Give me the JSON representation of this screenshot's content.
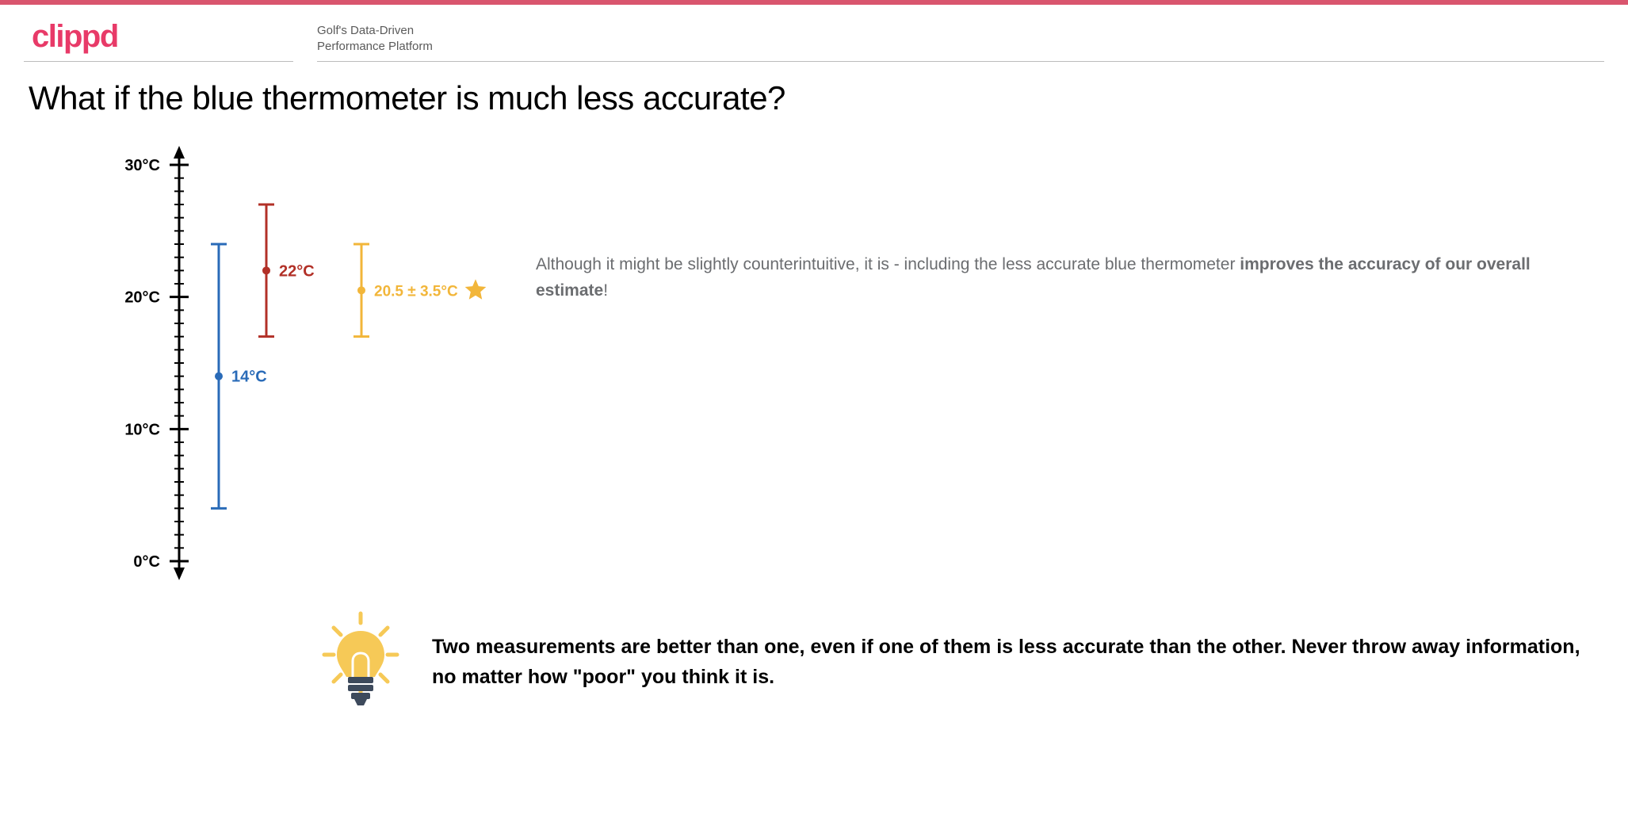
{
  "brand": {
    "logo_text": "clippd",
    "logo_color": "#e83a68",
    "tagline_line1": "Golf's Data-Driven",
    "tagline_line2": "Performance Platform",
    "topbar_color": "#d9556e"
  },
  "title": "What if the blue thermometer is much less accurate?",
  "chart": {
    "type": "errorbar-axis",
    "axis": {
      "min": 0,
      "max": 30,
      "major_step": 10,
      "minor_step": 1,
      "unit_suffix": "°C",
      "color": "#000000",
      "label_fontsize": 20,
      "label_fontweight": 700
    },
    "series": [
      {
        "id": "blue",
        "value": 14,
        "err_low": 4,
        "err_high": 24,
        "color": "#2a6bb8",
        "x_offset": 50,
        "label": "14°C",
        "dot_r": 5
      },
      {
        "id": "red",
        "value": 22,
        "err_low": 17,
        "err_high": 27,
        "color": "#b23027",
        "x_offset": 110,
        "label": "22°C",
        "dot_r": 5
      },
      {
        "id": "combined",
        "value": 20.5,
        "err_low": 17,
        "err_high": 24,
        "color": "#f2b63a",
        "x_offset": 230,
        "label": "20.5 ± 3.5°C",
        "dot_r": 5,
        "has_star": true
      }
    ],
    "cap_halfwidth": 10,
    "line_width": 3,
    "star_color": "#f2b63a",
    "background": "#ffffff"
  },
  "side_text": {
    "pre": "Although it might be slightly counterintuitive, it is - including the less accurate blue thermometer ",
    "bold": "improves the accuracy of our overall estimate",
    "post": "!"
  },
  "callout": {
    "icon_colors": {
      "bulb_fill": "#f6c957",
      "rays": "#f6c957",
      "base": "#3d4a5c",
      "filament": "#ffffff"
    },
    "text": "Two measurements are better than one, even if one of them is less accurate than the other. Never throw away information, no matter how \"poor\" you think it is."
  }
}
